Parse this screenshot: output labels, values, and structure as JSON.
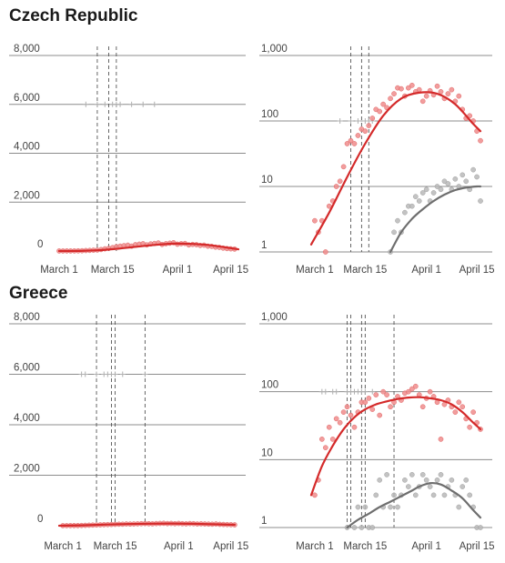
{
  "colors": {
    "cases": "#d42a2a",
    "deaths": "#6e6e6e",
    "cases_dot": "#f08c8c",
    "deaths_dot": "#b8b8b8",
    "grid": "#8c8c8c",
    "event_line": "#555555",
    "marker": "#b0b0b0"
  },
  "chart_data": [
    {
      "country": "Czech Republic",
      "type": "scatter",
      "scale": "linear",
      "ylim": [
        0,
        8000
      ],
      "yticks": [
        "0",
        "2,000",
        "4,000",
        "6,000",
        "8,000"
      ],
      "ytick_values": [
        0,
        2000,
        4000,
        6000,
        8000
      ],
      "xticks": [
        "March 1",
        "March 15",
        "April 1",
        "April 15"
      ],
      "xtick_days": [
        1,
        15,
        32,
        46
      ],
      "x_range_days": [
        1,
        48
      ],
      "event_days": [
        11,
        14,
        16
      ],
      "marker_days": [
        8,
        11,
        13,
        15,
        16,
        17,
        20,
        23,
        26
      ],
      "marker_value": 6000,
      "series": [
        {
          "kind": "cases_points",
          "days": [
            1,
            2,
            3,
            4,
            5,
            6,
            7,
            8,
            9,
            10,
            11,
            12,
            13,
            14,
            15,
            16,
            17,
            18,
            19,
            20,
            21,
            22,
            23,
            24,
            25,
            26,
            27,
            28,
            29,
            30,
            31,
            32,
            33,
            34,
            35,
            36,
            37,
            38,
            39,
            40,
            41,
            42,
            43,
            44,
            45,
            46,
            47
          ],
          "values": [
            3,
            3,
            5,
            4,
            5,
            8,
            12,
            20,
            25,
            35,
            40,
            60,
            90,
            110,
            140,
            180,
            200,
            220,
            240,
            200,
            260,
            280,
            300,
            250,
            290,
            310,
            330,
            270,
            300,
            320,
            340,
            280,
            300,
            310,
            250,
            270,
            260,
            230,
            240,
            200,
            190,
            160,
            150,
            120,
            100,
            90,
            80
          ]
        },
        {
          "kind": "cases_trend",
          "days": [
            1,
            6,
            11,
            16,
            21,
            26,
            31,
            36,
            41,
            46,
            48
          ],
          "values": [
            0,
            5,
            30,
            90,
            170,
            250,
            300,
            290,
            230,
            120,
            70
          ]
        }
      ]
    },
    {
      "country": "Czech Republic",
      "type": "scatter",
      "scale": "log",
      "ylim": [
        1,
        1000
      ],
      "yticks": [
        "1",
        "10",
        "100",
        "1,000"
      ],
      "ytick_values": [
        1,
        10,
        100,
        1000
      ],
      "xticks": [
        "March 1",
        "March 15",
        "April 1",
        "April 15"
      ],
      "xtick_days": [
        1,
        15,
        32,
        46
      ],
      "x_range_days": [
        -1,
        48
      ],
      "event_days": [
        11,
        14,
        16
      ],
      "marker_days": [
        8,
        11,
        13,
        15,
        16,
        17
      ],
      "marker_value": 100,
      "series": [
        {
          "kind": "cases_points",
          "days": [
            1,
            2,
            3,
            4,
            5,
            6,
            7,
            8,
            9,
            10,
            11,
            12,
            13,
            14,
            15,
            16,
            17,
            18,
            19,
            20,
            21,
            22,
            23,
            24,
            25,
            26,
            27,
            28,
            29,
            30,
            31,
            32,
            33,
            34,
            35,
            36,
            37,
            38,
            39,
            40,
            41,
            42,
            43,
            44,
            45,
            46,
            47
          ],
          "values": [
            3,
            2,
            3,
            1,
            5,
            6,
            10,
            12,
            20,
            45,
            50,
            45,
            60,
            75,
            70,
            85,
            110,
            150,
            140,
            180,
            160,
            220,
            260,
            320,
            310,
            240,
            320,
            350,
            280,
            300,
            200,
            240,
            290,
            250,
            340,
            280,
            220,
            260,
            300,
            200,
            240,
            150,
            110,
            120,
            100,
            70,
            50
          ]
        },
        {
          "kind": "cases_trend",
          "days": [
            0,
            5,
            10,
            15,
            20,
            25,
            30,
            35,
            40,
            45,
            47
          ],
          "values": [
            1.3,
            4,
            14,
            45,
            120,
            220,
            270,
            260,
            180,
            90,
            70
          ]
        },
        {
          "kind": "deaths_points",
          "days": [
            22,
            23,
            24,
            25,
            26,
            27,
            28,
            29,
            30,
            31,
            32,
            33,
            34,
            35,
            36,
            37,
            38,
            39,
            40,
            41,
            42,
            43,
            44,
            45,
            46,
            47
          ],
          "values": [
            1,
            2,
            3,
            2,
            4,
            5,
            5,
            7,
            6,
            8,
            9,
            6,
            8,
            10,
            9,
            12,
            11,
            9,
            13,
            10,
            15,
            12,
            9,
            18,
            14,
            6
          ]
        },
        {
          "kind": "deaths_trend",
          "days": [
            22,
            25,
            28,
            31,
            34,
            37,
            40,
            43,
            46,
            47
          ],
          "values": [
            1,
            2,
            3.2,
            4.5,
            6,
            7.5,
            8.8,
            9.6,
            10,
            10
          ]
        }
      ]
    },
    {
      "country": "Greece",
      "type": "scatter",
      "scale": "linear",
      "ylim": [
        0,
        8000
      ],
      "yticks": [
        "0",
        "2,000",
        "4,000",
        "6,000",
        "8,000"
      ],
      "ytick_values": [
        0,
        2000,
        4000,
        6000,
        8000
      ],
      "xticks": [
        "March 1",
        "March 15",
        "April 1",
        "April 15"
      ],
      "xtick_days": [
        1,
        15,
        32,
        46
      ],
      "x_range_days": [
        0,
        48
      ],
      "event_days": [
        10,
        14,
        15,
        23
      ],
      "marker_days": [
        6,
        7,
        10,
        12,
        13,
        14,
        15,
        17,
        23
      ],
      "marker_value": 6000,
      "series": [
        {
          "kind": "cases_points",
          "days": [
            1,
            2,
            3,
            4,
            5,
            6,
            7,
            8,
            9,
            10,
            11,
            12,
            13,
            14,
            15,
            16,
            17,
            18,
            19,
            20,
            21,
            22,
            23,
            24,
            25,
            26,
            27,
            28,
            29,
            30,
            31,
            32,
            33,
            34,
            35,
            36,
            37,
            38,
            39,
            40,
            41,
            42,
            43,
            44,
            45,
            46,
            47
          ],
          "values": [
            2,
            3,
            4,
            5,
            5,
            10,
            15,
            20,
            25,
            30,
            35,
            40,
            45,
            50,
            55,
            60,
            60,
            70,
            65,
            70,
            75,
            80,
            85,
            80,
            75,
            85,
            90,
            95,
            85,
            90,
            80,
            90,
            80,
            75,
            85,
            80,
            70,
            75,
            70,
            65,
            60,
            70,
            55,
            50,
            45,
            40,
            35
          ]
        },
        {
          "kind": "cases_trend",
          "days": [
            0,
            6,
            12,
            18,
            24,
            30,
            36,
            42,
            47
          ],
          "values": [
            0,
            15,
            45,
            65,
            80,
            85,
            75,
            55,
            35
          ]
        }
      ]
    },
    {
      "country": "Greece",
      "type": "scatter",
      "scale": "log",
      "ylim": [
        1,
        1000
      ],
      "yticks": [
        "1",
        "10",
        "100",
        "1,000"
      ],
      "ytick_values": [
        1,
        10,
        100,
        1000
      ],
      "xticks": [
        "March 1",
        "March 15",
        "April 1",
        "April 15"
      ],
      "xtick_days": [
        1,
        15,
        32,
        46
      ],
      "x_range_days": [
        -1,
        48
      ],
      "event_days": [
        10,
        11,
        14,
        15,
        23
      ],
      "marker_days": [
        3,
        4,
        6,
        7,
        10,
        11,
        12,
        13,
        14,
        15,
        17
      ],
      "marker_value": 100,
      "series": [
        {
          "kind": "cases_points",
          "days": [
            1,
            2,
            3,
            4,
            5,
            6,
            7,
            8,
            9,
            10,
            11,
            12,
            13,
            14,
            15,
            16,
            17,
            18,
            19,
            20,
            21,
            22,
            23,
            24,
            25,
            26,
            27,
            28,
            29,
            30,
            31,
            32,
            33,
            34,
            35,
            36,
            37,
            38,
            39,
            40,
            41,
            42,
            43,
            44,
            45,
            46,
            47
          ],
          "values": [
            3,
            5,
            20,
            15,
            30,
            20,
            40,
            35,
            50,
            60,
            45,
            30,
            50,
            70,
            70,
            80,
            55,
            90,
            45,
            100,
            90,
            60,
            70,
            85,
            75,
            95,
            100,
            110,
            120,
            90,
            60,
            80,
            100,
            85,
            70,
            20,
            65,
            75,
            60,
            50,
            70,
            60,
            40,
            30,
            50,
            35,
            28
          ]
        },
        {
          "kind": "cases_trend",
          "days": [
            0,
            3,
            6,
            9,
            12,
            15,
            18,
            21,
            24,
            27,
            30,
            33,
            36,
            39,
            42,
            45,
            47
          ],
          "values": [
            3,
            8,
            16,
            28,
            42,
            55,
            65,
            72,
            78,
            82,
            83,
            80,
            75,
            65,
            50,
            35,
            28
          ]
        },
        {
          "kind": "deaths_points",
          "days": [
            10,
            12,
            13,
            14,
            15,
            16,
            17,
            18,
            19,
            20,
            21,
            22,
            23,
            24,
            25,
            26,
            27,
            28,
            29,
            30,
            31,
            32,
            33,
            34,
            35,
            36,
            37,
            38,
            39,
            40,
            41,
            42,
            43,
            44,
            45,
            46,
            47
          ],
          "values": [
            1,
            1,
            2,
            1,
            2,
            1,
            1,
            3,
            5,
            2,
            6,
            2,
            3,
            2,
            3,
            5,
            4,
            6,
            3,
            4,
            6,
            5,
            4,
            3,
            5,
            6,
            3,
            4,
            5,
            3,
            2,
            4,
            5,
            3,
            2,
            1,
            1
          ]
        },
        {
          "kind": "deaths_trend",
          "days": [
            10,
            13,
            16,
            19,
            22,
            25,
            28,
            30,
            33,
            36,
            39,
            42,
            45,
            47
          ],
          "values": [
            1,
            1.3,
            1.6,
            2,
            2.4,
            2.9,
            3.5,
            4,
            4.5,
            4.3,
            3.5,
            2.7,
            1.8,
            1.4
          ]
        }
      ]
    }
  ]
}
